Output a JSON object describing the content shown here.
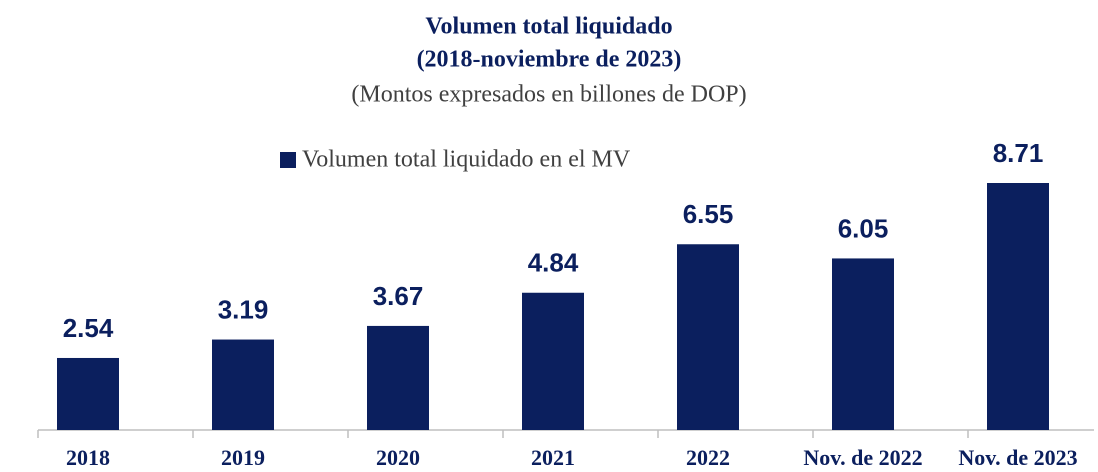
{
  "chart_data": {
    "type": "bar",
    "title": [
      "Volumen total liquidado",
      "(2018-noviembre de 2023)"
    ],
    "subtitle": "(Montos expresados en billones de DOP)",
    "categories": [
      "2018",
      "2019",
      "2020",
      "2021",
      "2022",
      "Nov. de 2022",
      "Nov. de 2023"
    ],
    "series": [
      {
        "name": "Volumen total liquidado en el MV",
        "color": "#0b1f5e",
        "values": [
          2.54,
          3.19,
          3.67,
          4.84,
          6.55,
          6.05,
          8.71
        ]
      }
    ]
  }
}
